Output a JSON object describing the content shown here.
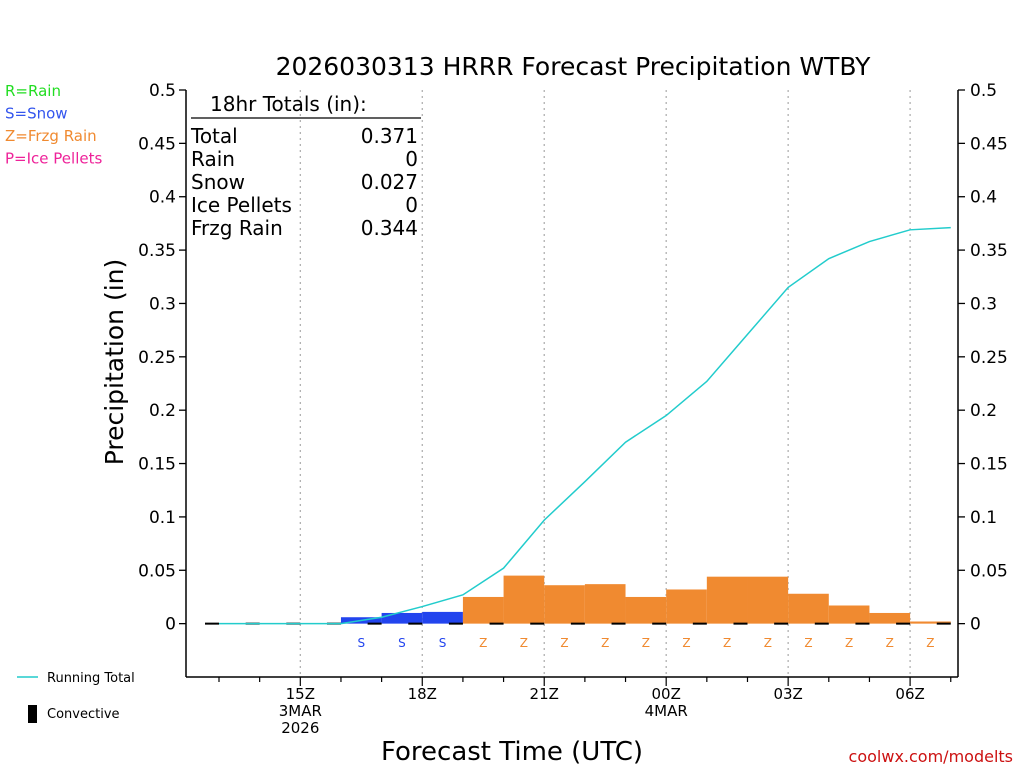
{
  "chart_data": {
    "type": "bar",
    "title": "2026030313 HRRR Forecast Precipitation WTBY",
    "xlabel": "Forecast Time (UTC)",
    "ylabel": "Precipitation (in)",
    "ylim": [
      -0.05,
      0.5
    ],
    "y_ticks": [
      0,
      0.05,
      0.1,
      0.15,
      0.2,
      0.25,
      0.3,
      0.35,
      0.4,
      0.45,
      0.5
    ],
    "y_tick_labels": [
      "0",
      "0.05",
      "0.1",
      "0.15",
      "0.2",
      "0.25",
      "0.3",
      "0.35",
      "0.4",
      "0.45",
      "0.5"
    ],
    "x_range_hours": [
      13,
      31
    ],
    "x_ticks": [
      {
        "hour": 15,
        "lines": [
          "15Z",
          "3MAR",
          "2026"
        ]
      },
      {
        "hour": 18,
        "lines": [
          "18Z"
        ]
      },
      {
        "hour": 21,
        "lines": [
          "21Z"
        ]
      },
      {
        "hour": 24,
        "lines": [
          "00Z",
          "4MAR"
        ]
      },
      {
        "hour": 27,
        "lines": [
          "03Z"
        ]
      },
      {
        "hour": 30,
        "lines": [
          "06Z"
        ]
      }
    ],
    "legend": [
      {
        "label": "R=Rain",
        "color": "#22dd22"
      },
      {
        "label": "S=Snow",
        "color": "#3355ee"
      },
      {
        "label": "Z=Frzg Rain",
        "color": "#f08a30"
      },
      {
        "label": "P=Ice Pellets",
        "color": "#ee2299"
      }
    ],
    "series_legend": [
      {
        "label": "Running Total",
        "color": "#22cccc"
      },
      {
        "label": "Convective",
        "color": "#000000"
      }
    ],
    "type_colors": {
      "S": "#2244ee",
      "Z": "#f08a30"
    },
    "bars": [
      {
        "hour": 13,
        "value": 0.0,
        "ptype": ""
      },
      {
        "hour": 14,
        "value": 0.0,
        "ptype": ""
      },
      {
        "hour": 15,
        "value": 0.0,
        "ptype": ""
      },
      {
        "hour": 16,
        "value": 0.0,
        "ptype": ""
      },
      {
        "hour": 17,
        "value": 0.006,
        "ptype": "S"
      },
      {
        "hour": 18,
        "value": 0.01,
        "ptype": "S"
      },
      {
        "hour": 19,
        "value": 0.011,
        "ptype": "S"
      },
      {
        "hour": 20,
        "value": 0.025,
        "ptype": "Z"
      },
      {
        "hour": 21,
        "value": 0.045,
        "ptype": "Z"
      },
      {
        "hour": 22,
        "value": 0.036,
        "ptype": "Z"
      },
      {
        "hour": 23,
        "value": 0.037,
        "ptype": "Z"
      },
      {
        "hour": 24,
        "value": 0.025,
        "ptype": "Z"
      },
      {
        "hour": 25,
        "value": 0.032,
        "ptype": "Z"
      },
      {
        "hour": 26,
        "value": 0.044,
        "ptype": "Z"
      },
      {
        "hour": 27,
        "value": 0.044,
        "ptype": "Z"
      },
      {
        "hour": 28,
        "value": 0.028,
        "ptype": "Z"
      },
      {
        "hour": 29,
        "value": 0.017,
        "ptype": "Z"
      },
      {
        "hour": 30,
        "value": 0.01,
        "ptype": "Z"
      },
      {
        "hour": 31,
        "value": 0.002,
        "ptype": "Z"
      }
    ],
    "running_total": {
      "hours": [
        13,
        14,
        15,
        16,
        17,
        18,
        19,
        20,
        21,
        22,
        23,
        24,
        25,
        26,
        27,
        28,
        29,
        30,
        31
      ],
      "values": [
        0.0,
        0.0,
        0.0,
        0.0,
        0.006,
        0.016,
        0.027,
        0.052,
        0.097,
        0.133,
        0.17,
        0.195,
        0.227,
        0.271,
        0.315,
        0.342,
        0.358,
        0.369,
        0.371
      ]
    },
    "totals_box": {
      "header": "18hr Totals (in):",
      "rows": [
        {
          "label": "Total",
          "value": "0.371"
        },
        {
          "label": "Rain",
          "value": "0"
        },
        {
          "label": "Snow",
          "value": "0.027"
        },
        {
          "label": "Ice Pellets",
          "value": "0"
        },
        {
          "label": "Frzg Rain",
          "value": "0.344"
        }
      ]
    },
    "credit": "coolwx.com/modelts"
  }
}
